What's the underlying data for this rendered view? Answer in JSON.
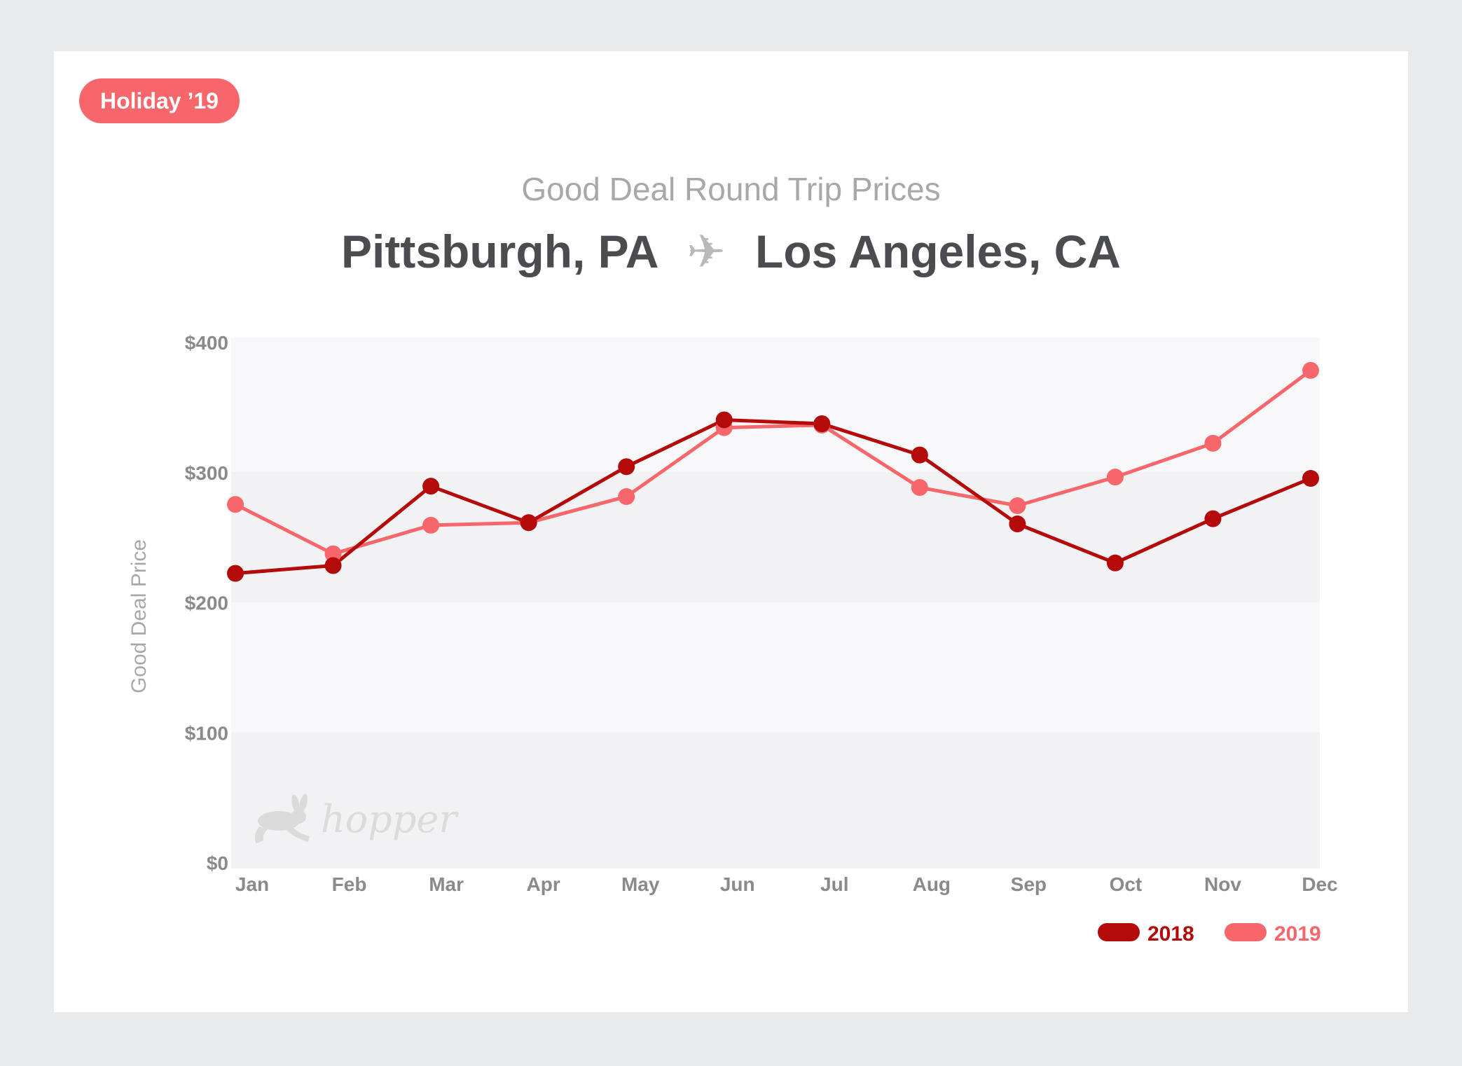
{
  "badge": "Holiday ’19",
  "subtitle": "Good Deal Round Trip Prices",
  "route": {
    "origin": "Pittsburgh, PA",
    "destination": "Los Angeles, CA",
    "separator_icon": "airplane-icon"
  },
  "watermark": "hopper",
  "colors": {
    "series_2018": "#b40a0a",
    "series_2019": "#f7666a",
    "badge": "#f7666a"
  },
  "chart_data": {
    "type": "line",
    "ylabel": "Good Deal Price",
    "xlabel": "",
    "ylim": [
      0,
      400
    ],
    "yticks": [
      0,
      100,
      200,
      300,
      400
    ],
    "ytick_labels": [
      "$0",
      "$100",
      "$200",
      "$300",
      "$400"
    ],
    "categories": [
      "Jan",
      "Feb",
      "Mar",
      "Apr",
      "May",
      "Jun",
      "Jul",
      "Aug",
      "Sep",
      "Oct",
      "Nov",
      "Dec"
    ],
    "legend_position": "bottom-right",
    "series": [
      {
        "name": "2018",
        "color": "#b40a0a",
        "values": [
          222,
          228,
          289,
          261,
          304,
          340,
          337,
          313,
          260,
          230,
          264,
          295
        ]
      },
      {
        "name": "2019",
        "color": "#f7666a",
        "values": [
          275,
          237,
          259,
          261,
          281,
          334,
          336,
          288,
          274,
          296,
          322,
          378
        ]
      }
    ]
  }
}
